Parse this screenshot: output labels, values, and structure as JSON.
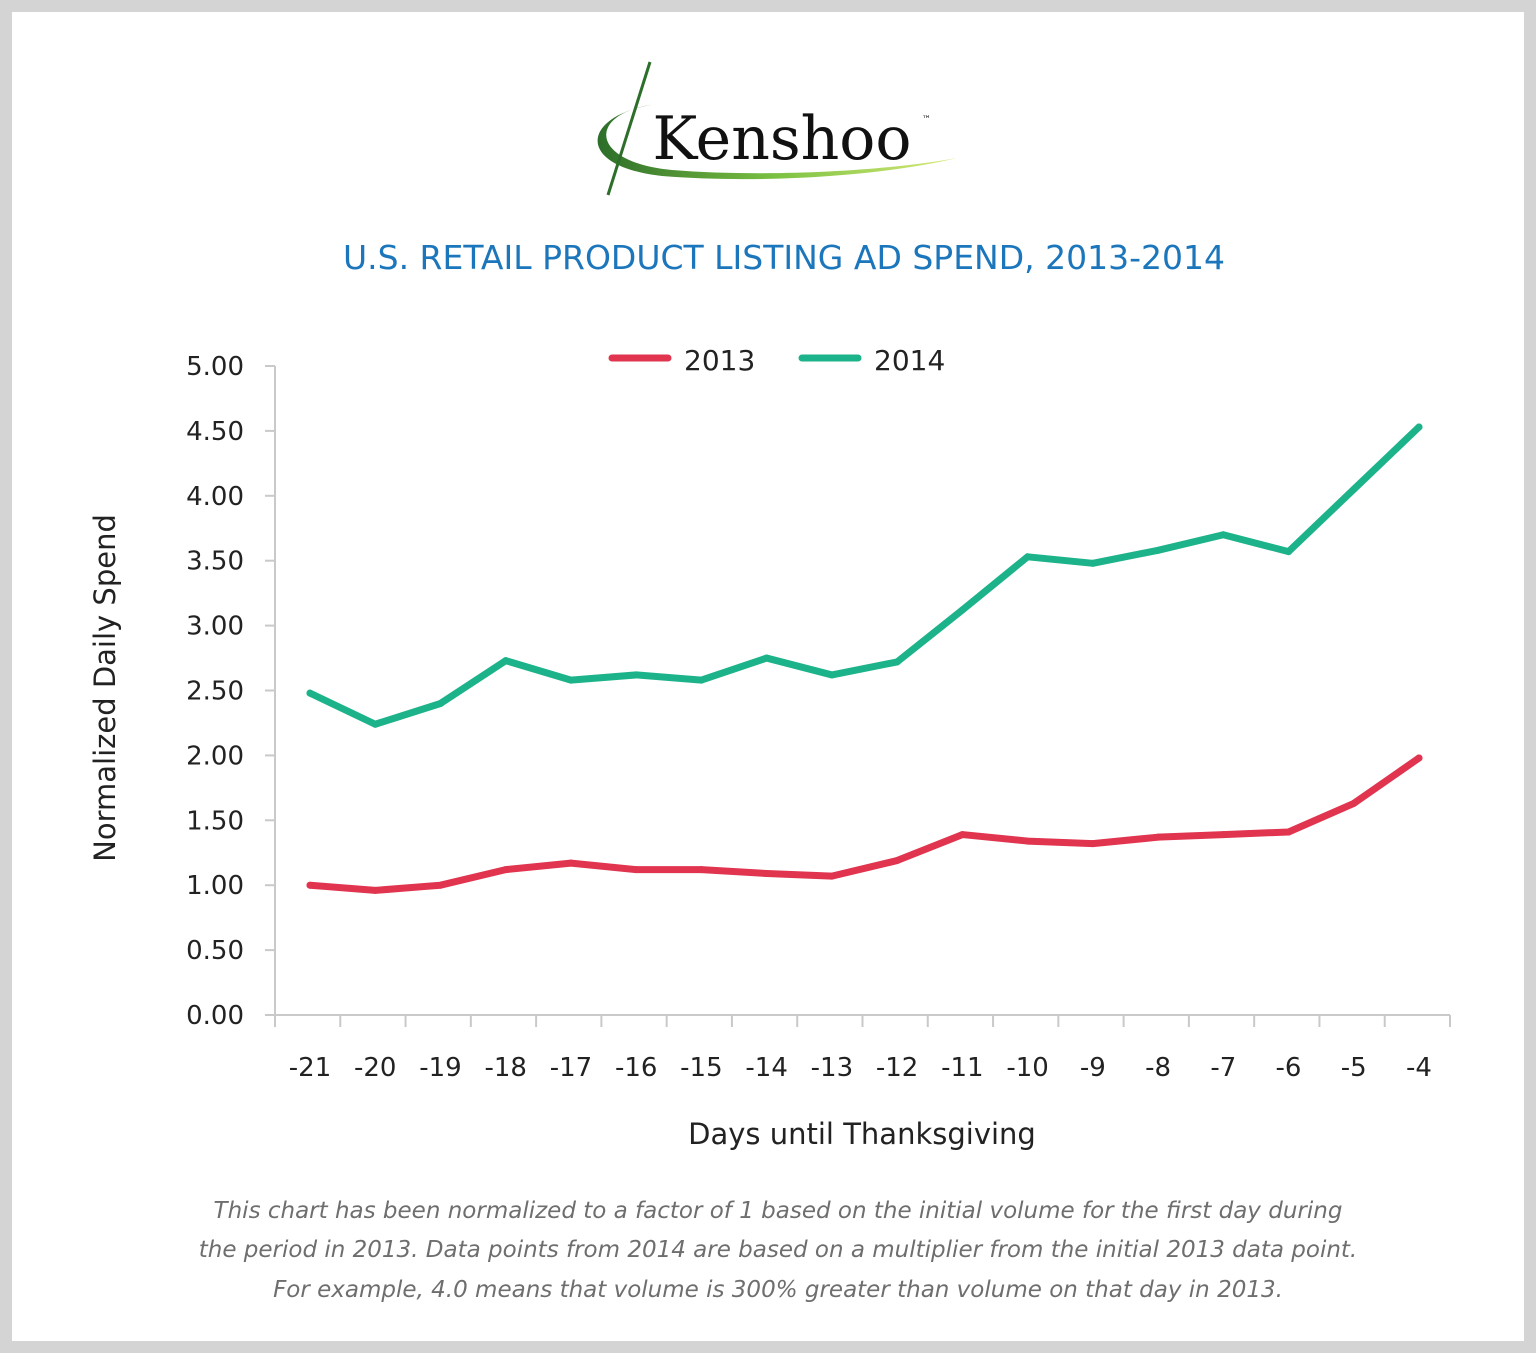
{
  "logo": {
    "text": "Kenshoo",
    "trademark": "™"
  },
  "colors": {
    "title": "#1b76bb",
    "series_2013": "#e0344f",
    "series_2014": "#1db38a",
    "footnote": "#6e6e6e",
    "frame": "#d4d4d4"
  },
  "footnote": {
    "lines": [
      "This chart has been normalized to a factor of 1 based on the initial volume for the first day during",
      "the period in 2013. Data points from 2014 are based on a multiplier from the initial 2013 data point.",
      "For example, 4.0 means that volume is 300% greater than volume on that day in 2013."
    ]
  },
  "chart_data": {
    "type": "line",
    "title": "U.S. RETAIL PRODUCT LISTING AD SPEND, 2013-2014",
    "xlabel": "Days until Thanksgiving",
    "ylabel": "Normalized Daily Spend",
    "x": [
      "-21",
      "-20",
      "-19",
      "-18",
      "-17",
      "-16",
      "-15",
      "-14",
      "-13",
      "-12",
      "-11",
      "-10",
      "-9",
      "-8",
      "-7",
      "-6",
      "-5",
      "-4"
    ],
    "ylim": [
      0,
      5
    ],
    "yticks": [
      "0.00",
      "0.50",
      "1.00",
      "1.50",
      "2.00",
      "2.50",
      "3.00",
      "3.50",
      "4.00",
      "4.50",
      "5.00"
    ],
    "grid": false,
    "legend_position": "top-center",
    "series": [
      {
        "name": "2013",
        "color": "#e0344f",
        "values": [
          1.0,
          0.96,
          1.0,
          1.12,
          1.17,
          1.12,
          1.12,
          1.09,
          1.07,
          1.19,
          1.39,
          1.34,
          1.32,
          1.37,
          1.39,
          1.41,
          1.63,
          1.98
        ]
      },
      {
        "name": "2014",
        "color": "#1db38a",
        "values": [
          2.48,
          2.24,
          2.4,
          2.73,
          2.58,
          2.62,
          2.58,
          2.75,
          2.62,
          2.72,
          3.12,
          3.53,
          3.48,
          3.58,
          3.7,
          3.57,
          4.05,
          4.53
        ]
      }
    ]
  }
}
